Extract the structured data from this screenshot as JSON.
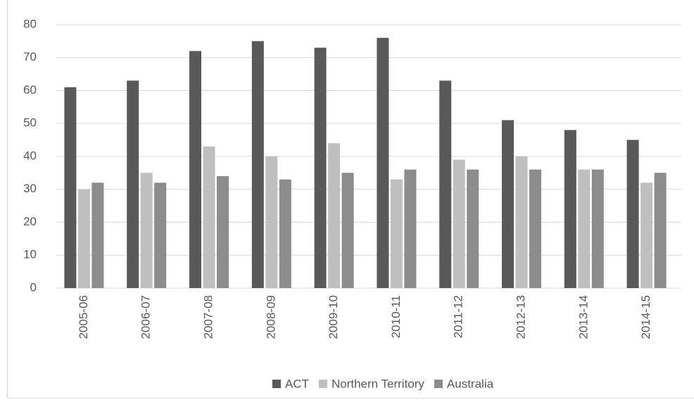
{
  "chart_data": {
    "type": "bar",
    "categories": [
      "2005-06",
      "2006-07",
      "2007-08",
      "2008-09",
      "2009-10",
      "2010-11",
      "2011-12",
      "2012-13",
      "2013-14",
      "2014-15"
    ],
    "series": [
      {
        "name": "ACT",
        "color": "#595959",
        "values": [
          61,
          63,
          72,
          75,
          73,
          76,
          63,
          51,
          48,
          45
        ]
      },
      {
        "name": "Northern Territory",
        "color": "#bfbfbf",
        "values": [
          30,
          35,
          43,
          40,
          44,
          33,
          39,
          40,
          36,
          32
        ]
      },
      {
        "name": "Australia",
        "color": "#8c8c8c",
        "values": [
          32,
          32,
          34,
          33,
          35,
          36,
          36,
          36,
          36,
          35
        ]
      }
    ],
    "ylim": [
      0,
      80
    ],
    "yticks": [
      0,
      10,
      20,
      30,
      40,
      50,
      60,
      70,
      80
    ],
    "grid": true,
    "legend": "bottom"
  }
}
